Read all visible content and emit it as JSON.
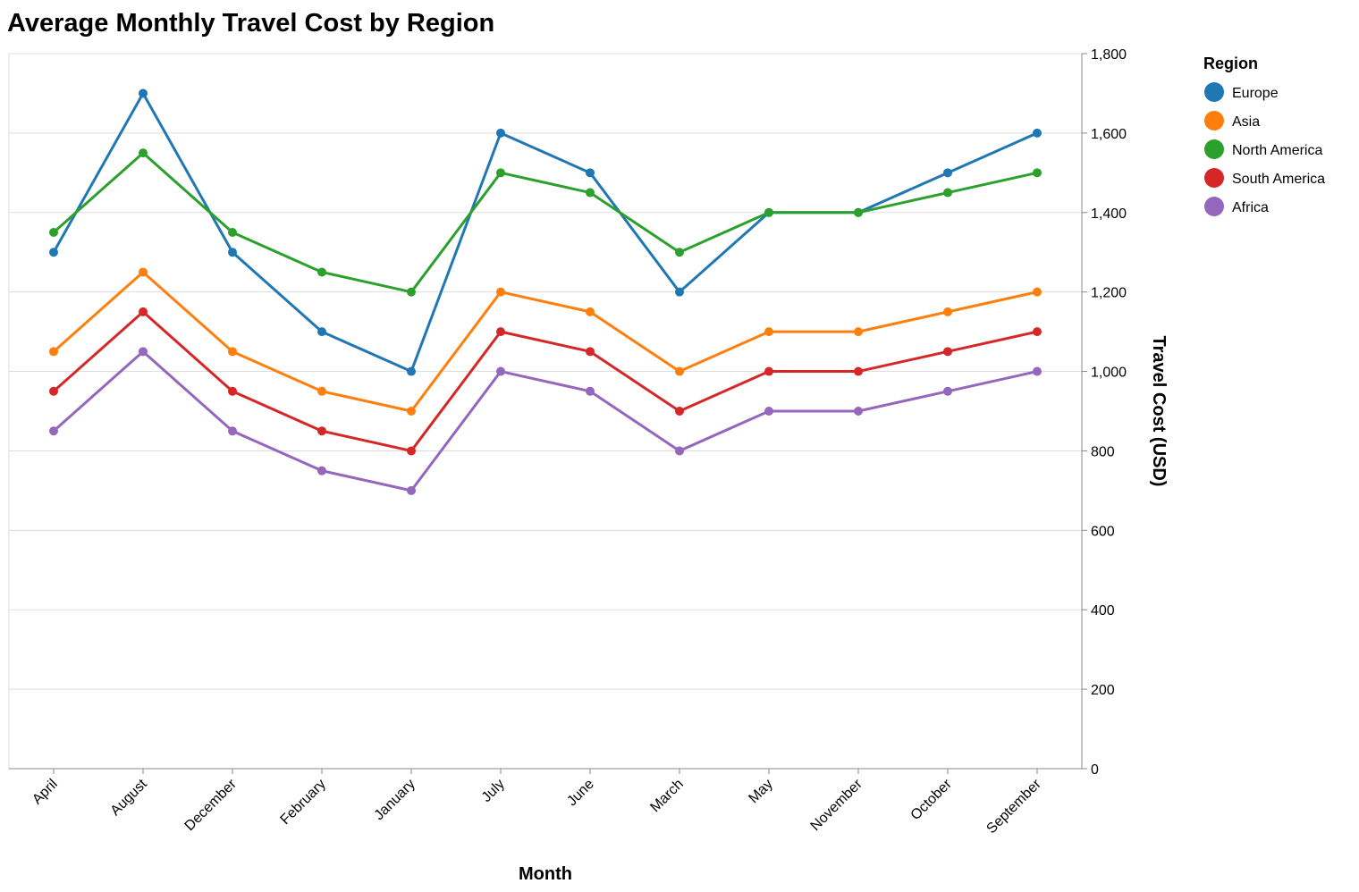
{
  "chart_data": {
    "type": "line",
    "title": "Average Monthly Travel Cost by Region",
    "xlabel": "Month",
    "ylabel": "Travel Cost (USD)",
    "ylim": [
      0,
      1800
    ],
    "y_ticks": [
      0,
      200,
      400,
      600,
      800,
      1000,
      1200,
      1400,
      1600,
      1800
    ],
    "y_axis_position": "right",
    "grid": true,
    "legend_title": "Region",
    "legend_position": "top-right",
    "categories": [
      "April",
      "August",
      "December",
      "February",
      "January",
      "July",
      "June",
      "March",
      "May",
      "November",
      "October",
      "September"
    ],
    "series": [
      {
        "name": "Europe",
        "color": "#1f77b4",
        "values": [
          1300,
          1700,
          1300,
          1100,
          1000,
          1600,
          1500,
          1200,
          1400,
          1400,
          1500,
          1600
        ]
      },
      {
        "name": "Asia",
        "color": "#ff7f0e",
        "values": [
          1050,
          1250,
          1050,
          950,
          900,
          1200,
          1150,
          1000,
          1100,
          1100,
          1150,
          1200
        ]
      },
      {
        "name": "North America",
        "color": "#2ca02c",
        "values": [
          1350,
          1550,
          1350,
          1250,
          1200,
          1500,
          1450,
          1300,
          1400,
          1400,
          1450,
          1500
        ]
      },
      {
        "name": "South America",
        "color": "#d62728",
        "values": [
          950,
          1150,
          950,
          850,
          800,
          1100,
          1050,
          900,
          1000,
          1000,
          1050,
          1100
        ]
      },
      {
        "name": "Africa",
        "color": "#9467bd",
        "values": [
          850,
          1050,
          850,
          750,
          700,
          1000,
          950,
          800,
          900,
          900,
          950,
          1000
        ]
      }
    ]
  }
}
